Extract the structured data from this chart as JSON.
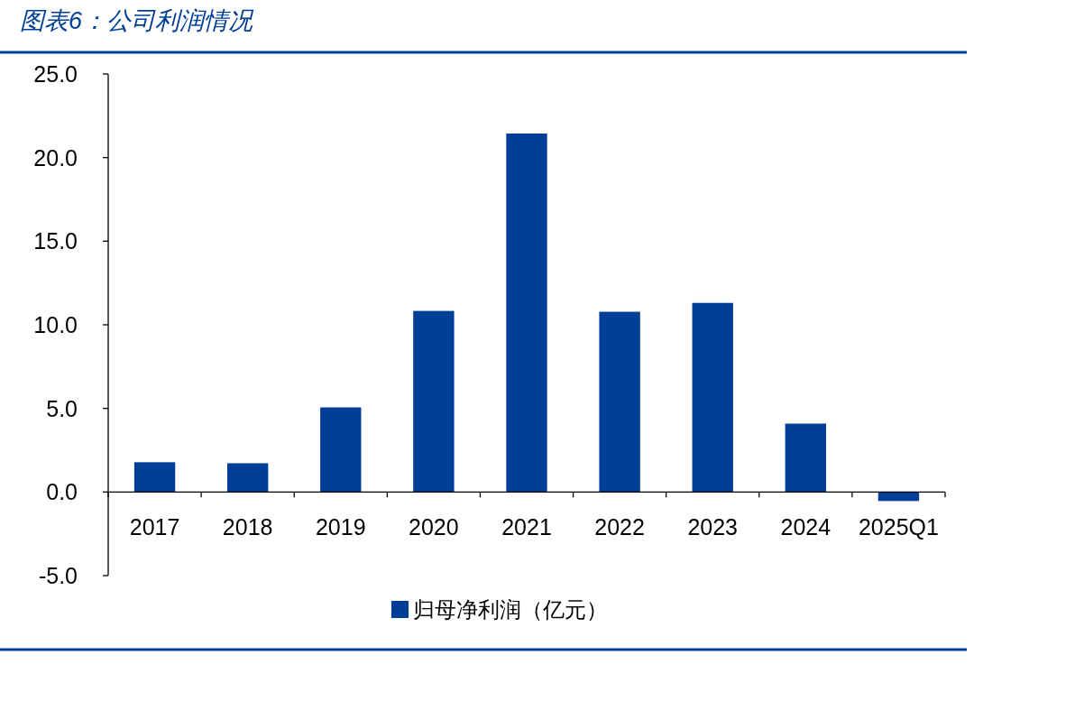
{
  "chart_data": {
    "type": "bar",
    "title": "图表6：公司利润情况",
    "categories": [
      "2017",
      "2018",
      "2019",
      "2020",
      "2021",
      "2022",
      "2023",
      "2024",
      "2025Q1"
    ],
    "series": [
      {
        "name": "归母净利润（亿元）",
        "color": "#003f98",
        "values": [
          1.78,
          1.72,
          5.06,
          10.83,
          21.44,
          10.78,
          11.31,
          4.09,
          -0.54
        ]
      }
    ],
    "ylim": [
      -5,
      25
    ],
    "yticks": [
      {
        "value": -5,
        "label": "-5.0"
      },
      {
        "value": 0,
        "label": "0.0"
      },
      {
        "value": 5,
        "label": "5.0"
      },
      {
        "value": 10,
        "label": "10.0"
      },
      {
        "value": 15,
        "label": "15.0"
      },
      {
        "value": 20,
        "label": "20.0"
      },
      {
        "value": 25,
        "label": "25.0"
      }
    ],
    "grid": false,
    "legend": "bottom"
  }
}
